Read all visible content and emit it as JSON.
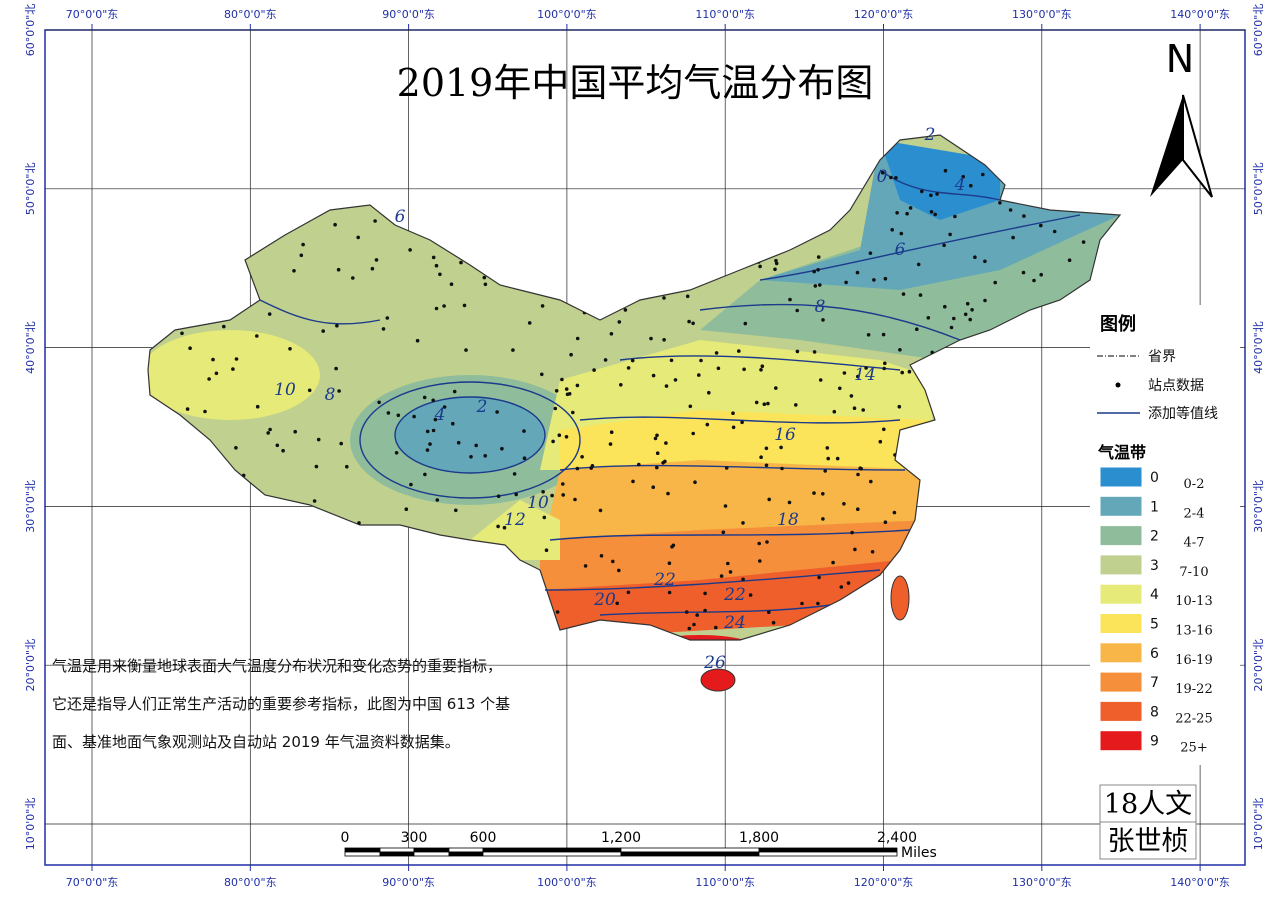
{
  "title": "2019年中国平均气温分布图",
  "north": "N",
  "graticule": {
    "lon_labels": [
      "70°0'0\"东",
      "80°0'0\"东",
      "90°0'0\"东",
      "100°0'0\"东",
      "110°0'0\"东",
      "120°0'0\"东",
      "130°0'0\"东",
      "140°0'0\"东"
    ],
    "lat_labels": [
      "60°0'0\"北",
      "50°0'0\"北",
      "40°0'0\"北",
      "30°0'0\"北",
      "20°0'0\"北",
      "10°0'0\"北"
    ]
  },
  "contour_labels": [
    "0",
    "2",
    "2",
    "4",
    "4",
    "6",
    "6",
    "8",
    "8",
    "10",
    "10",
    "12",
    "14",
    "16",
    "18",
    "20",
    "22",
    "22",
    "24",
    "26"
  ],
  "legend": {
    "title": "图例",
    "items": [
      "省界",
      "站点数据",
      "添加等值线"
    ],
    "band_title": "气温带",
    "bands": [
      {
        "code": "0",
        "range": "0-2",
        "color": "#2b8fcf"
      },
      {
        "code": "1",
        "range": "2-4",
        "color": "#64a7b8"
      },
      {
        "code": "2",
        "range": "4-7",
        "color": "#8fbd9b"
      },
      {
        "code": "3",
        "range": "7-10",
        "color": "#bfd08f"
      },
      {
        "code": "4",
        "range": "10-13",
        "color": "#e6ea78"
      },
      {
        "code": "5",
        "range": "13-16",
        "color": "#fbe35a"
      },
      {
        "code": "6",
        "range": "16-19",
        "color": "#f8b648"
      },
      {
        "code": "7",
        "range": "19-22",
        "color": "#f68f3b"
      },
      {
        "code": "8",
        "range": "22-25",
        "color": "#ef5f2c"
      },
      {
        "code": "9",
        "range": "25+",
        "color": "#e41a1c"
      }
    ]
  },
  "scale_bar": {
    "ticks": [
      "0",
      "300",
      "600",
      "1,200",
      "1,800",
      "2,400"
    ],
    "unit": "Miles"
  },
  "description": [
    "气温是用来衡量地球表面大气温度分布状况和变化态势的重要指标，",
    "它还是指导人们正常生产活动的重要参考指标，此图为中国 613 个基",
    "面、基准地面气象观测站及自动站 2019 年气温资料数据集。"
  ],
  "author": [
    "18人文",
    "张世桢"
  ]
}
